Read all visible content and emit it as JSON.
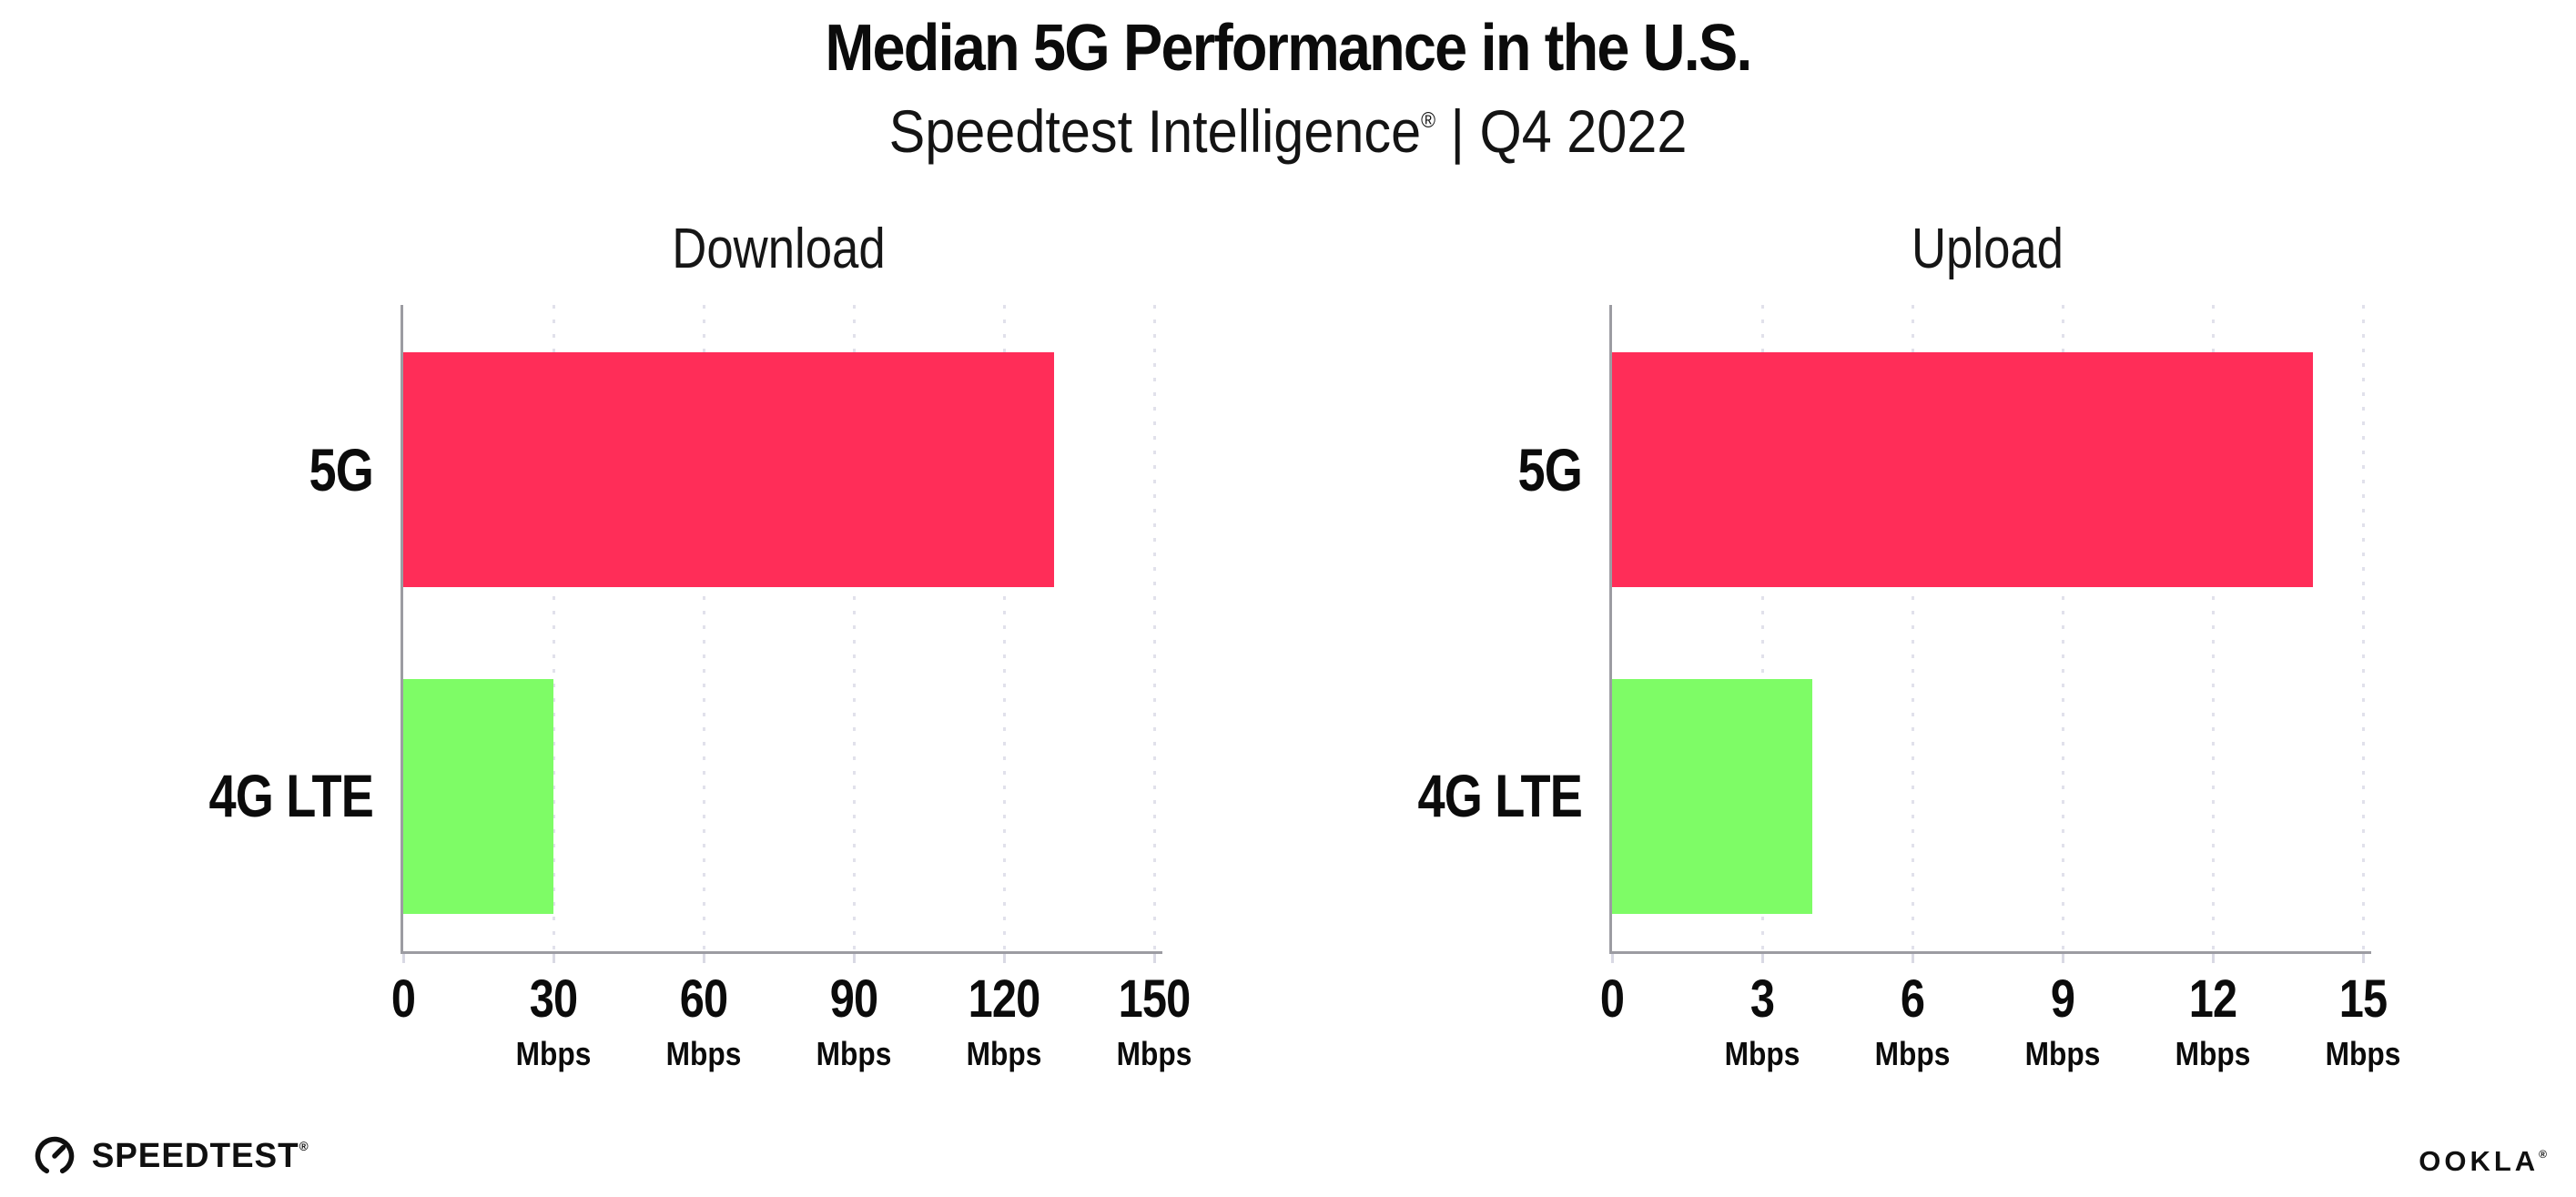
{
  "header": {
    "title": "Median 5G Performance in the U.S.",
    "subtitle_brand": "Speedtest Intelligence",
    "subtitle_mark": "®",
    "subtitle_rest": " | Q4 2022"
  },
  "footer": {
    "speedtest_label": "SPEEDTEST",
    "speedtest_mark": "®",
    "ookla_label": "OOKLA",
    "ookla_mark": "®"
  },
  "colors": {
    "bar_5g": "#ff2d58",
    "bar_4g_lte": "#7efc66",
    "axis": "#9c9ca2",
    "gridline": "#e1e1eb",
    "text": "#0b0b0b"
  },
  "chart_data": [
    {
      "type": "bar",
      "orientation": "horizontal",
      "title": "Download",
      "categories": [
        "5G",
        "4G LTE"
      ],
      "values": [
        130,
        30
      ],
      "unit": "Mbps",
      "xlabel": "",
      "ylabel": "",
      "xlim": [
        0,
        150
      ],
      "xticks": [
        0,
        30,
        60,
        90,
        120,
        150
      ],
      "grid": "dotted-vertical",
      "legend": "none",
      "bar_colors": [
        "#ff2d58",
        "#7efc66"
      ]
    },
    {
      "type": "bar",
      "orientation": "horizontal",
      "title": "Upload",
      "categories": [
        "5G",
        "4G LTE"
      ],
      "values": [
        14,
        4
      ],
      "unit": "Mbps",
      "xlabel": "",
      "ylabel": "",
      "xlim": [
        0,
        15
      ],
      "xticks": [
        0,
        3,
        6,
        9,
        12,
        15
      ],
      "grid": "dotted-vertical",
      "legend": "none",
      "bar_colors": [
        "#ff2d58",
        "#7efc66"
      ]
    }
  ]
}
